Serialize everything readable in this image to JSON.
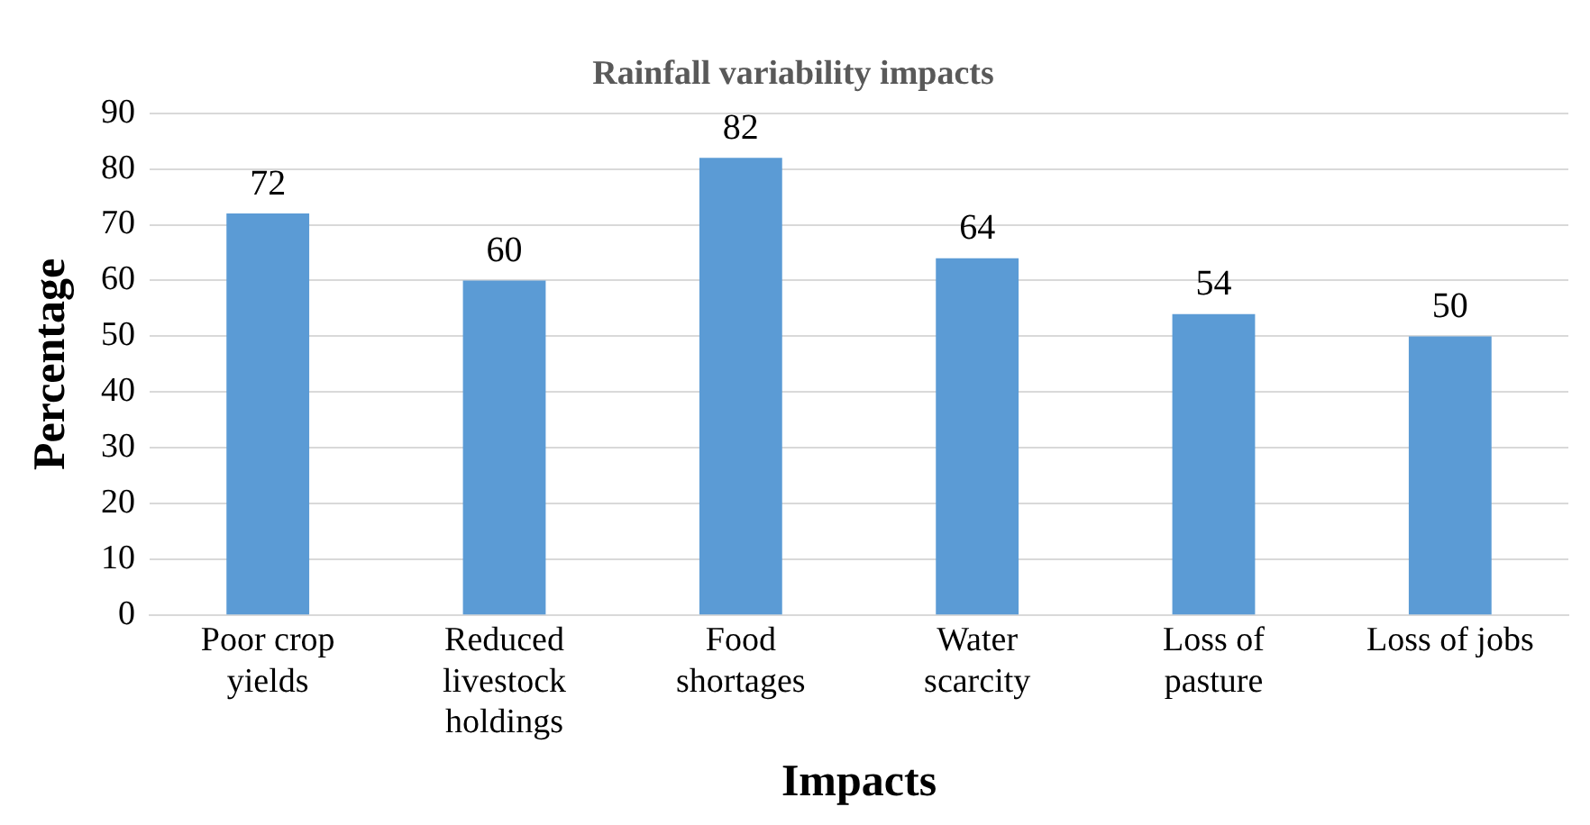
{
  "chart_data": {
    "type": "bar",
    "title": "Rainfall variability impacts",
    "xlabel": "Impacts",
    "ylabel": "Percentage",
    "categories": [
      "Poor crop yields",
      "Reduced livestock holdings",
      "Food shortages",
      "Water scarcity",
      "Loss of pasture",
      "Loss of jobs"
    ],
    "values": [
      72,
      60,
      82,
      64,
      54,
      50
    ],
    "color": "#5b9bd5",
    "ylim": [
      0,
      90
    ],
    "yticks": [
      0,
      10,
      20,
      30,
      40,
      50,
      60,
      70,
      80,
      90
    ],
    "grid": "y",
    "data_labels": true
  }
}
